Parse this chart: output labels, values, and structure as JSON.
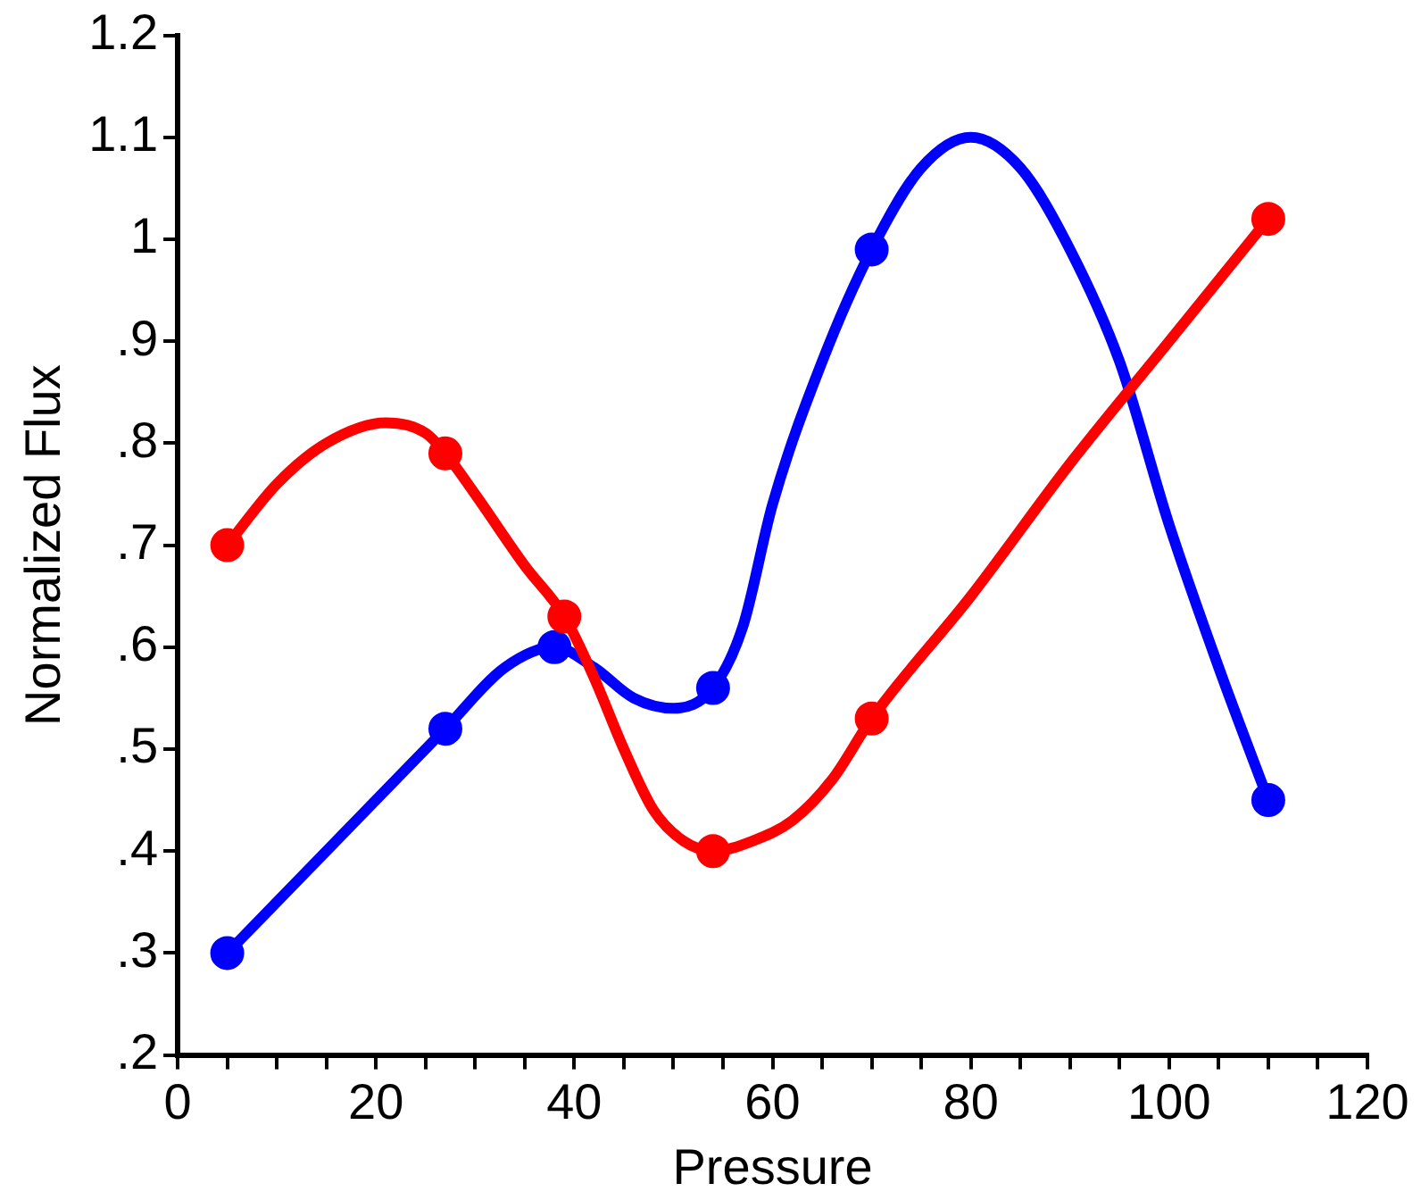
{
  "chart_data": {
    "type": "line",
    "xlabel": "Pressure",
    "ylabel": "Normalized Flux",
    "xlim": [
      0,
      120
    ],
    "ylim": [
      0.2,
      1.2
    ],
    "xticks": [
      0,
      {
        "value": 5,
        "label": null
      },
      {
        "value": 10,
        "label": null
      },
      {
        "value": 15,
        "label": null
      },
      20,
      {
        "value": 25,
        "label": null
      },
      {
        "value": 30,
        "label": null
      },
      {
        "value": 35,
        "label": null
      },
      40,
      {
        "value": 45,
        "label": null
      },
      {
        "value": 50,
        "label": null
      },
      {
        "value": 55,
        "label": null
      },
      60,
      {
        "value": 65,
        "label": null
      },
      {
        "value": 70,
        "label": null
      },
      {
        "value": 75,
        "label": null
      },
      80,
      {
        "value": 85,
        "label": null
      },
      {
        "value": 90,
        "label": null
      },
      {
        "value": 95,
        "label": null
      },
      100,
      {
        "value": 105,
        "label": null
      },
      {
        "value": 110,
        "label": null
      },
      {
        "value": 115,
        "label": null
      },
      120
    ],
    "yticks": [
      {
        "value": 0.2,
        "label": ".2"
      },
      {
        "value": 0.3,
        "label": ".3"
      },
      {
        "value": 0.4,
        "label": ".4"
      },
      {
        "value": 0.5,
        "label": ".5"
      },
      {
        "value": 0.6,
        "label": ".6"
      },
      {
        "value": 0.7,
        "label": ".7"
      },
      {
        "value": 0.8,
        "label": ".8"
      },
      {
        "value": 0.9,
        "label": ".9"
      },
      1,
      1.1,
      1.2
    ],
    "grid": false,
    "legend": false,
    "line_style": "solid",
    "series": [
      {
        "color": "#ff0000",
        "marker": "none",
        "x": [
          5,
          10,
          15,
          21,
          25,
          27,
          30,
          35,
          39,
          42,
          45,
          48,
          51,
          54,
          58,
          62,
          66,
          70,
          80,
          90,
          100,
          110
        ],
        "values": [
          0.7,
          0.76,
          0.8,
          0.82,
          0.81,
          0.79,
          0.75,
          0.68,
          0.63,
          0.57,
          0.5,
          0.44,
          0.41,
          0.4,
          0.41,
          0.43,
          0.47,
          0.53,
          0.65,
          0.78,
          0.9,
          1.02
        ]
      },
      {
        "type": "scatter",
        "color": "#ff0000",
        "marker": "circle",
        "x": [
          5,
          27,
          39,
          54,
          70,
          110
        ],
        "values": [
          0.7,
          0.79,
          0.63,
          0.4,
          0.53,
          1.02
        ]
      },
      {
        "color": "#0000ff",
        "marker": "none",
        "x": [
          5,
          27,
          33,
          38,
          42,
          46,
          50,
          54,
          57,
          60,
          65,
          70,
          75,
          80,
          85,
          90,
          95,
          100,
          105,
          110
        ],
        "values": [
          0.3,
          0.52,
          0.58,
          0.6,
          0.58,
          0.55,
          0.54,
          0.56,
          0.62,
          0.74,
          0.88,
          0.99,
          1.07,
          1.1,
          1.07,
          0.99,
          0.88,
          0.72,
          0.58,
          0.45
        ]
      },
      {
        "type": "scatter",
        "color": "#0000ff",
        "marker": "circle",
        "x": [
          5,
          27,
          38,
          54,
          70,
          110
        ],
        "values": [
          0.3,
          0.52,
          0.6,
          0.56,
          0.99,
          0.45
        ]
      }
    ]
  }
}
